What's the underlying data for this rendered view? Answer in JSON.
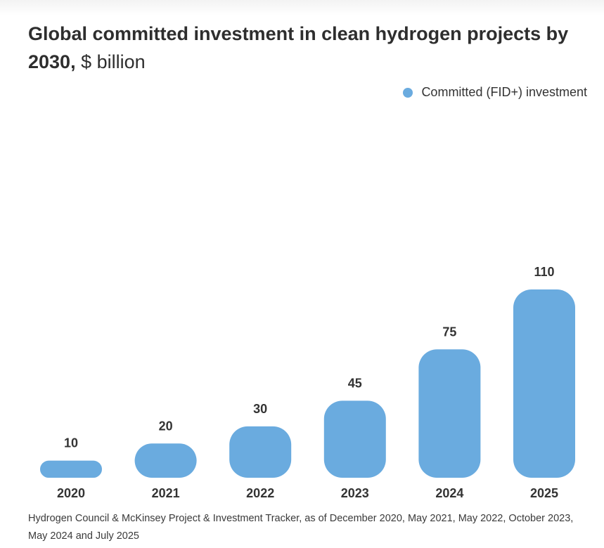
{
  "title": {
    "main": "Global committed investment in clean hydrogen projects by 2030,",
    "unit": "$ billion"
  },
  "legend": {
    "label": "Committed (FID+) investment",
    "color": "#6aabdf"
  },
  "chart_data": {
    "type": "bar",
    "categories": [
      "2020",
      "2021",
      "2022",
      "2023",
      "2024",
      "2025"
    ],
    "series": [
      {
        "name": "Committed (FID+) investment",
        "values": [
          10,
          20,
          30,
          45,
          75,
          110
        ]
      }
    ],
    "data_labels": [
      "10",
      "20",
      "30",
      "45",
      "75",
      "110"
    ],
    "ylim": [
      0,
      110
    ],
    "grid": false,
    "legend_position": "top-right",
    "bar_color": "#6aabdf"
  },
  "source": "Hydrogen Council & McKinsey Project & Investment Tracker, as of December 2020, May 2021, May 2022, October 2023, May 2024 and July 2025"
}
